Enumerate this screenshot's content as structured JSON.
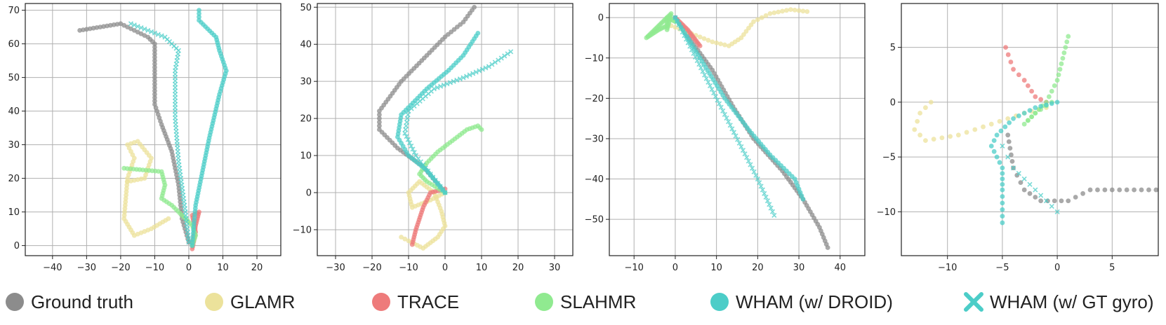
{
  "colors": {
    "gt": "#8c8c8c",
    "glamr": "#ece29b",
    "trace": "#ee7b7b",
    "slahmr": "#90ea90",
    "wham_droid": "#4ccdc8",
    "wham_gyro": "#4ccdc8"
  },
  "legend": [
    {
      "key": "gt",
      "label": "Ground truth",
      "marker": "circle"
    },
    {
      "key": "glamr",
      "label": "GLAMR",
      "marker": "circle"
    },
    {
      "key": "trace",
      "label": "TRACE",
      "marker": "circle"
    },
    {
      "key": "slahmr",
      "label": "SLAHMR",
      "marker": "circle"
    },
    {
      "key": "wham_droid",
      "label": "WHAM (w/ DROID)",
      "marker": "circle"
    },
    {
      "key": "wham_gyro",
      "label": "WHAM (w/ GT gyro)",
      "marker": "x"
    }
  ],
  "chart_data": [
    {
      "type": "scatter",
      "title": "",
      "xlabel": "",
      "ylabel": "",
      "xlim": [
        -48,
        27
      ],
      "ylim": [
        -3,
        72
      ],
      "xticks": [
        -40,
        -30,
        -20,
        -10,
        0,
        10,
        20
      ],
      "yticks": [
        0,
        10,
        20,
        30,
        40,
        50,
        60,
        70
      ],
      "grid": true,
      "series": [
        {
          "name": "Ground truth",
          "key": "gt",
          "step": 1.0,
          "points": [
            [
              -32,
              64
            ],
            [
              -26,
              65
            ],
            [
              -20,
              66
            ],
            [
              -16,
              64
            ],
            [
              -12,
              62
            ],
            [
              -10,
              60
            ],
            [
              -10,
              48
            ],
            [
              -10,
              42
            ],
            [
              -8,
              36
            ],
            [
              -5,
              28
            ],
            [
              -3,
              18
            ],
            [
              -2,
              8
            ],
            [
              0,
              1
            ]
          ]
        },
        {
          "name": "GLAMR",
          "key": "glamr",
          "step": 1.0,
          "points": [
            [
              -6,
              8
            ],
            [
              -11,
              5
            ],
            [
              -16,
              3
            ],
            [
              -19,
              8
            ],
            [
              -18,
              20
            ],
            [
              -16,
              26
            ],
            [
              -18,
              30
            ],
            [
              -15,
              31
            ],
            [
              -11,
              26
            ],
            [
              -13,
              20
            ],
            [
              -18,
              19
            ]
          ]
        },
        {
          "name": "TRACE",
          "key": "trace",
          "step": 0.7,
          "points": [
            [
              1,
              -1
            ],
            [
              2,
              4
            ],
            [
              1,
              9
            ],
            [
              3,
              10
            ],
            [
              2,
              6
            ],
            [
              1,
              0
            ]
          ]
        },
        {
          "name": "SLAHMR",
          "key": "slahmr",
          "step": 0.9,
          "points": [
            [
              -19,
              23
            ],
            [
              -8,
              22
            ],
            [
              -7,
              18
            ],
            [
              -8,
              14
            ],
            [
              -5,
              12
            ],
            [
              -2,
              9
            ],
            [
              1,
              6
            ],
            [
              2,
              3
            ],
            [
              1,
              0
            ]
          ]
        },
        {
          "name": "WHAM (w/ DROID)",
          "key": "wham_droid",
          "step": 0.9,
          "points": [
            [
              1,
              0
            ],
            [
              2,
              12
            ],
            [
              6,
              32
            ],
            [
              9,
              45
            ],
            [
              11,
              52
            ],
            [
              9,
              58
            ],
            [
              8,
              62
            ],
            [
              3,
              67
            ],
            [
              3,
              70
            ]
          ]
        },
        {
          "name": "WHAM (w/ GT gyro)",
          "key": "wham_gyro",
          "marker": "x",
          "step": 1.0,
          "points": [
            [
              0,
              1
            ],
            [
              -1,
              10
            ],
            [
              -3,
              25
            ],
            [
              -4,
              38
            ],
            [
              -4,
              52
            ],
            [
              -3,
              58
            ],
            [
              -7,
              62
            ],
            [
              -12,
              64
            ],
            [
              -17,
              66
            ]
          ]
        }
      ]
    },
    {
      "type": "scatter",
      "title": "",
      "xlabel": "",
      "ylabel": "",
      "xlim": [
        -35,
        35
      ],
      "ylim": [
        -17,
        51
      ],
      "xticks": [
        -30,
        -20,
        -10,
        0,
        10,
        20,
        30
      ],
      "yticks": [
        -10,
        0,
        10,
        20,
        30,
        40,
        50
      ],
      "grid": true,
      "series": [
        {
          "name": "Ground truth",
          "key": "gt",
          "step": 1.0,
          "points": [
            [
              0,
              0
            ],
            [
              -6,
              7
            ],
            [
              -13,
              12
            ],
            [
              -18,
              17
            ],
            [
              -18,
              22
            ],
            [
              -12,
              30
            ],
            [
              -5,
              37
            ],
            [
              0,
              42
            ],
            [
              5,
              46
            ],
            [
              8,
              50
            ]
          ]
        },
        {
          "name": "GLAMR",
          "key": "glamr",
          "step": 0.9,
          "points": [
            [
              0,
              0
            ],
            [
              -4,
              -2
            ],
            [
              -9,
              -4
            ],
            [
              -10,
              0
            ],
            [
              -7,
              3
            ],
            [
              -3,
              0
            ],
            [
              -1,
              -5
            ],
            [
              0,
              -9
            ],
            [
              -2,
              -12
            ],
            [
              -6,
              -15
            ],
            [
              -10,
              -13
            ],
            [
              -12,
              -12
            ]
          ]
        },
        {
          "name": "TRACE",
          "key": "trace",
          "step": 0.7,
          "points": [
            [
              0,
              1
            ],
            [
              -4,
              0
            ],
            [
              -6,
              -4
            ],
            [
              -8,
              -10
            ],
            [
              -9,
              -14
            ]
          ]
        },
        {
          "name": "SLAHMR",
          "key": "slahmr",
          "step": 0.8,
          "points": [
            [
              0,
              0
            ],
            [
              -5,
              3
            ],
            [
              -7,
              5
            ],
            [
              -5,
              8
            ],
            [
              -2,
              11
            ],
            [
              2,
              14
            ],
            [
              6,
              17
            ],
            [
              9,
              18
            ],
            [
              10,
              17
            ]
          ]
        },
        {
          "name": "WHAM (w/ DROID)",
          "key": "wham_droid",
          "step": 0.9,
          "points": [
            [
              0,
              0
            ],
            [
              -5,
              6
            ],
            [
              -10,
              10
            ],
            [
              -13,
              15
            ],
            [
              -12,
              21
            ],
            [
              -5,
              28
            ],
            [
              1,
              33
            ],
            [
              5,
              37
            ],
            [
              9,
              43
            ]
          ]
        },
        {
          "name": "WHAM (w/ GT gyro)",
          "key": "wham_gyro",
          "marker": "x",
          "step": 1.0,
          "points": [
            [
              0,
              0
            ],
            [
              -4,
              5
            ],
            [
              -8,
              10
            ],
            [
              -11,
              16
            ],
            [
              -10,
              22
            ],
            [
              -3,
              28
            ],
            [
              5,
              31
            ],
            [
              12,
              34
            ],
            [
              18,
              38
            ]
          ]
        }
      ]
    },
    {
      "type": "scatter",
      "title": "",
      "xlabel": "",
      "ylabel": "",
      "xlim": [
        -16,
        46
      ],
      "ylim": [
        -59,
        3.5
      ],
      "xticks": [
        -10,
        0,
        10,
        20,
        30,
        40
      ],
      "yticks": [
        -50,
        -40,
        -30,
        -20,
        -10,
        0
      ],
      "grid": true,
      "series": [
        {
          "name": "Ground truth",
          "key": "gt",
          "step": 0.9,
          "points": [
            [
              0,
              0
            ],
            [
              4,
              -6
            ],
            [
              9,
              -13
            ],
            [
              14,
              -22
            ],
            [
              19,
              -30
            ],
            [
              26,
              -38
            ],
            [
              31,
              -45
            ],
            [
              35,
              -52
            ],
            [
              37,
              -57
            ]
          ]
        },
        {
          "name": "GLAMR",
          "key": "glamr",
          "step": 1.0,
          "points": [
            [
              -1,
              -2
            ],
            [
              4,
              -4
            ],
            [
              9,
              -6
            ],
            [
              13,
              -7
            ],
            [
              16,
              -5
            ],
            [
              19,
              -1
            ],
            [
              23,
              1
            ],
            [
              28,
              2
            ],
            [
              32,
              1.5
            ]
          ]
        },
        {
          "name": "TRACE",
          "key": "trace",
          "step": 0.5,
          "points": [
            [
              0,
              0
            ],
            [
              3,
              -3
            ],
            [
              6,
              -7
            ]
          ]
        },
        {
          "name": "SLAHMR",
          "key": "slahmr",
          "step": 0.45,
          "points": [
            [
              0,
              -1
            ],
            [
              -2,
              0
            ],
            [
              -4,
              -2
            ],
            [
              -6,
              -4
            ],
            [
              -7,
              -5
            ],
            [
              -4,
              -3
            ],
            [
              -2,
              -2
            ],
            [
              -2,
              0
            ],
            [
              -1,
              1
            ],
            [
              -2,
              -3
            ]
          ]
        },
        {
          "name": "WHAM (w/ DROID)",
          "key": "wham_droid",
          "step": 0.9,
          "points": [
            [
              0,
              0
            ],
            [
              6,
              -10
            ],
            [
              12,
              -20
            ],
            [
              18,
              -28
            ],
            [
              23,
              -34
            ],
            [
              29,
              -40
            ],
            [
              31,
              -45
            ]
          ]
        },
        {
          "name": "WHAM (w/ GT gyro)",
          "key": "wham_gyro",
          "marker": "x",
          "step": 1.0,
          "points": [
            [
              0,
              0
            ],
            [
              4,
              -8
            ],
            [
              8,
              -16
            ],
            [
              12,
              -24
            ],
            [
              16,
              -32
            ],
            [
              20,
              -40
            ],
            [
              24,
              -49
            ]
          ]
        }
      ]
    },
    {
      "type": "scatter",
      "title": "",
      "xlabel": "",
      "ylabel": "",
      "xlim": [
        -14.2,
        9.2
      ],
      "ylim": [
        -14,
        9
      ],
      "xticks": [
        -10,
        -5,
        0,
        5
      ],
      "yticks": [
        -10,
        -5,
        0,
        5
      ],
      "grid": true,
      "series": [
        {
          "name": "Ground truth",
          "key": "gt",
          "step": 0.65,
          "points": [
            [
              -4.5,
              -3
            ],
            [
              -4,
              -6
            ],
            [
              -3,
              -8
            ],
            [
              -1.5,
              -9
            ],
            [
              1,
              -9
            ],
            [
              3,
              -8
            ],
            [
              5,
              -8
            ],
            [
              7,
              -8
            ],
            [
              9,
              -8
            ]
          ]
        },
        {
          "name": "GLAMR",
          "key": "glamr",
          "step": 0.75,
          "points": [
            [
              -11.5,
              0
            ],
            [
              -12.5,
              -1
            ],
            [
              -13,
              -2.5
            ],
            [
              -12,
              -3.5
            ],
            [
              -9,
              -3
            ],
            [
              -6,
              -2
            ],
            [
              -3,
              -1
            ],
            [
              -1,
              -0.5
            ]
          ]
        },
        {
          "name": "TRACE",
          "key": "trace",
          "step": 0.7,
          "points": [
            [
              -4.7,
              5
            ],
            [
              -4,
              3
            ],
            [
              -3,
              2
            ],
            [
              -2,
              0.5
            ],
            [
              -1,
              0
            ]
          ]
        },
        {
          "name": "SLAHMR",
          "key": "slahmr",
          "step": 0.55,
          "points": [
            [
              -0.5,
              0
            ],
            [
              -2,
              -1
            ],
            [
              -3,
              -2
            ],
            [
              -2,
              -1
            ],
            [
              -1,
              0
            ],
            [
              0,
              2
            ],
            [
              0.5,
              4
            ],
            [
              1,
              6
            ]
          ]
        },
        {
          "name": "WHAM (w/ DROID)",
          "key": "wham_droid",
          "step": 0.55,
          "points": [
            [
              0,
              0
            ],
            [
              -2,
              -0.5
            ],
            [
              -4,
              -1.5
            ],
            [
              -5.5,
              -3
            ],
            [
              -6,
              -4
            ],
            [
              -5,
              -6
            ],
            [
              -5,
              -8
            ],
            [
              -5,
              -11
            ]
          ]
        },
        {
          "name": "WHAM (w/ GT gyro)",
          "key": "wham_gyro",
          "marker": "x",
          "step": 0.9,
          "points": [
            [
              -5,
              -4
            ],
            [
              -4,
              -6
            ],
            [
              -3,
              -7
            ],
            [
              -2,
              -8
            ],
            [
              -1,
              -9
            ],
            [
              0,
              -10
            ]
          ]
        }
      ]
    }
  ]
}
